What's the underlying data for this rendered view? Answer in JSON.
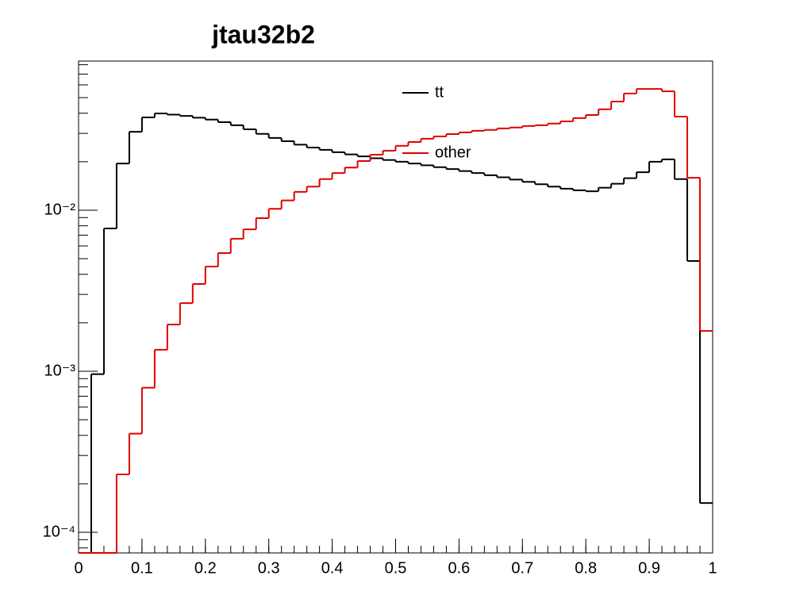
{
  "chart_data": {
    "type": "histogram",
    "title": "jtau32b2",
    "bins": [
      0,
      0.02,
      0.04,
      0.06,
      0.08,
      0.1,
      0.12,
      0.14,
      0.16,
      0.18,
      0.2,
      0.22,
      0.24,
      0.26,
      0.28,
      0.3,
      0.32,
      0.34,
      0.36,
      0.38,
      0.4,
      0.42,
      0.44,
      0.46,
      0.48,
      0.5,
      0.52,
      0.54,
      0.56,
      0.58,
      0.6,
      0.62,
      0.64,
      0.66,
      0.68,
      0.7,
      0.72,
      0.74,
      0.76,
      0.78,
      0.8,
      0.82,
      0.84,
      0.86,
      0.88,
      0.9,
      0.92,
      0.94,
      0.96,
      0.98,
      1
    ],
    "series": [
      {
        "name": "tt",
        "color": "#000000",
        "values": [
          0,
          0.00096,
          0.0077,
          0.0195,
          0.0307,
          0.0377,
          0.0399,
          0.0392,
          0.0385,
          0.0375,
          0.0365,
          0.0352,
          0.0337,
          0.0318,
          0.0298,
          0.0281,
          0.0268,
          0.0255,
          0.0245,
          0.0237,
          0.0229,
          0.0222,
          0.0216,
          0.021,
          0.0205,
          0.02,
          0.0195,
          0.019,
          0.0185,
          0.018,
          0.0175,
          0.017,
          0.0165,
          0.016,
          0.0155,
          0.015,
          0.0145,
          0.014,
          0.0136,
          0.0133,
          0.0131,
          0.0138,
          0.0146,
          0.0158,
          0.0172,
          0.02,
          0.0207,
          0.0156,
          0.00484,
          0.000152
        ]
      },
      {
        "name": "other",
        "color": "#e00000",
        "values": [
          0,
          0,
          0,
          0.000229,
          0.00041,
          0.00079,
          0.00136,
          0.00195,
          0.00265,
          0.00348,
          0.00447,
          0.00542,
          0.00665,
          0.0076,
          0.00893,
          0.0102,
          0.0115,
          0.013,
          0.014,
          0.0156,
          0.017,
          0.0184,
          0.0202,
          0.0221,
          0.0234,
          0.0251,
          0.0265,
          0.0278,
          0.0287,
          0.0297,
          0.0304,
          0.0311,
          0.0315,
          0.0322,
          0.0326,
          0.0333,
          0.0337,
          0.0345,
          0.0356,
          0.0373,
          0.039,
          0.0423,
          0.0473,
          0.053,
          0.0566,
          0.0566,
          0.0547,
          0.0381,
          0.0159,
          0.00178
        ]
      }
    ],
    "xlim": [
      0,
      1
    ],
    "xticks": [
      0,
      0.1,
      0.2,
      0.3,
      0.4,
      0.5,
      0.6,
      0.7,
      0.8,
      0.9,
      1
    ],
    "ylim": [
      7.45e-05,
      0.0843
    ],
    "yticks": [
      {
        "value": 0.0001,
        "label": "10⁻⁴"
      },
      {
        "value": 0.001,
        "label": "10⁻³"
      },
      {
        "value": 0.01,
        "label": "10⁻²"
      }
    ],
    "log_y": true
  }
}
